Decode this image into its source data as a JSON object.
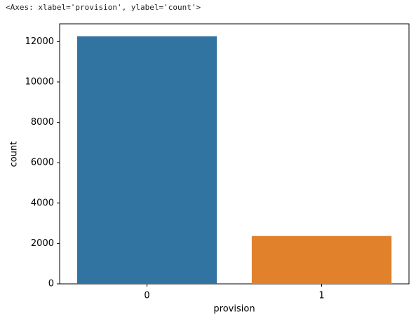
{
  "output_text": "<Axes: xlabel='provision', ylabel='count'>",
  "chart_data": {
    "type": "bar",
    "xlabel": "provision",
    "ylabel": "count",
    "categories": [
      "0",
      "1"
    ],
    "values": [
      12265,
      2369
    ],
    "colors": [
      "#3274a1",
      "#e1812c"
    ],
    "ylim": [
      0,
      12880
    ],
    "yticks": [
      0,
      2000,
      4000,
      6000,
      8000,
      10000,
      12000
    ],
    "grid": false
  }
}
